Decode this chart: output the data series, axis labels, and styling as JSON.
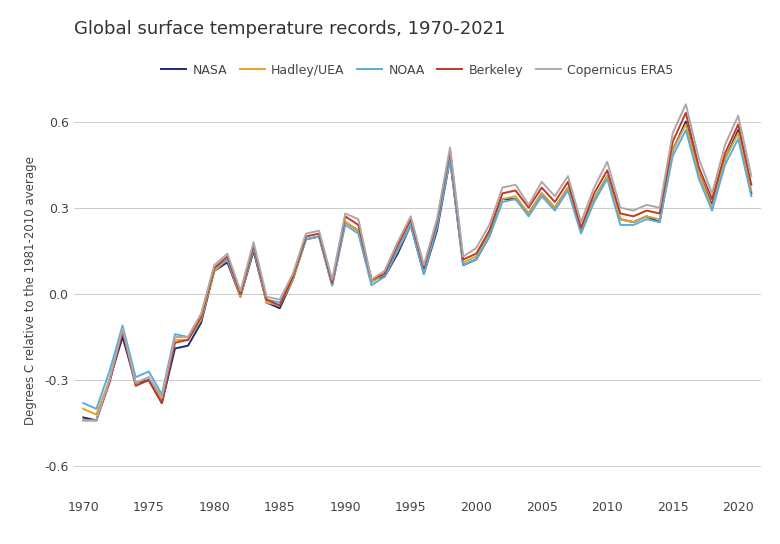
{
  "title": "Global surface temperature records, 1970-2021",
  "ylabel": "Degrees C relative to the 1981-2010 average",
  "years": [
    1970,
    1971,
    1972,
    1973,
    1974,
    1975,
    1976,
    1977,
    1978,
    1979,
    1980,
    1981,
    1982,
    1983,
    1984,
    1985,
    1986,
    1987,
    1988,
    1989,
    1990,
    1991,
    1992,
    1993,
    1994,
    1995,
    1996,
    1997,
    1998,
    1999,
    2000,
    2001,
    2002,
    2003,
    2004,
    2005,
    2006,
    2007,
    2008,
    2009,
    2010,
    2011,
    2012,
    2013,
    2014,
    2015,
    2016,
    2017,
    2018,
    2019,
    2020,
    2021
  ],
  "NASA": [
    -0.43,
    -0.44,
    -0.3,
    -0.15,
    -0.31,
    -0.3,
    -0.38,
    -0.19,
    -0.18,
    -0.1,
    0.08,
    0.11,
    -0.01,
    0.15,
    -0.03,
    -0.05,
    0.05,
    0.19,
    0.2,
    0.03,
    0.25,
    0.22,
    0.05,
    0.06,
    0.14,
    0.24,
    0.07,
    0.22,
    0.47,
    0.1,
    0.12,
    0.2,
    0.33,
    0.33,
    0.28,
    0.35,
    0.3,
    0.37,
    0.22,
    0.33,
    0.41,
    0.26,
    0.25,
    0.27,
    0.25,
    0.5,
    0.6,
    0.42,
    0.31,
    0.47,
    0.57,
    0.35
  ],
  "HadleyUEA": [
    -0.4,
    -0.42,
    -0.3,
    -0.12,
    -0.31,
    -0.29,
    -0.37,
    -0.16,
    -0.16,
    -0.09,
    0.08,
    0.12,
    -0.01,
    0.16,
    -0.03,
    -0.04,
    0.05,
    0.19,
    0.2,
    0.03,
    0.25,
    0.22,
    0.04,
    0.07,
    0.16,
    0.25,
    0.08,
    0.24,
    0.48,
    0.11,
    0.13,
    0.21,
    0.33,
    0.34,
    0.28,
    0.35,
    0.3,
    0.37,
    0.22,
    0.33,
    0.41,
    0.26,
    0.25,
    0.27,
    0.26,
    0.5,
    0.59,
    0.42,
    0.3,
    0.47,
    0.56,
    0.36
  ],
  "NOAA": [
    -0.38,
    -0.4,
    -0.27,
    -0.11,
    -0.29,
    -0.27,
    -0.35,
    -0.14,
    -0.15,
    -0.07,
    0.09,
    0.12,
    0.0,
    0.16,
    -0.02,
    -0.03,
    0.06,
    0.19,
    0.2,
    0.03,
    0.24,
    0.21,
    0.03,
    0.06,
    0.15,
    0.24,
    0.07,
    0.23,
    0.47,
    0.1,
    0.12,
    0.2,
    0.32,
    0.33,
    0.27,
    0.34,
    0.29,
    0.36,
    0.21,
    0.32,
    0.4,
    0.24,
    0.24,
    0.26,
    0.25,
    0.48,
    0.57,
    0.4,
    0.29,
    0.45,
    0.54,
    0.34
  ],
  "Berkeley": [
    -0.44,
    -0.44,
    -0.31,
    -0.13,
    -0.32,
    -0.3,
    -0.38,
    -0.17,
    -0.16,
    -0.08,
    0.09,
    0.13,
    0.0,
    0.17,
    -0.02,
    -0.04,
    0.06,
    0.2,
    0.21,
    0.04,
    0.27,
    0.24,
    0.05,
    0.07,
    0.17,
    0.26,
    0.09,
    0.25,
    0.5,
    0.12,
    0.14,
    0.22,
    0.35,
    0.36,
    0.3,
    0.37,
    0.32,
    0.39,
    0.23,
    0.35,
    0.43,
    0.28,
    0.27,
    0.29,
    0.28,
    0.53,
    0.63,
    0.44,
    0.33,
    0.49,
    0.59,
    0.38
  ],
  "CopernicusERA5": [
    -0.44,
    -0.44,
    -0.3,
    -0.12,
    -0.31,
    -0.29,
    -0.36,
    -0.15,
    -0.15,
    -0.07,
    0.1,
    0.14,
    0.01,
    0.18,
    -0.01,
    -0.02,
    0.07,
    0.21,
    0.22,
    0.05,
    0.28,
    0.26,
    0.05,
    0.08,
    0.18,
    0.27,
    0.1,
    0.26,
    0.51,
    0.13,
    0.16,
    0.24,
    0.37,
    0.38,
    0.31,
    0.39,
    0.34,
    0.41,
    0.25,
    0.37,
    0.46,
    0.3,
    0.29,
    0.31,
    0.3,
    0.56,
    0.66,
    0.47,
    0.35,
    0.52,
    0.62,
    0.41
  ],
  "colors": {
    "NASA": "#1b2a7b",
    "HadleyUEA": "#e8a020",
    "NOAA": "#5aacdc",
    "Berkeley": "#c0392b",
    "CopernicusERA5": "#aaaaaa"
  },
  "legend_labels": [
    "NASA",
    "Hadley/UEA",
    "NOAA",
    "Berkeley",
    "Copernicus ERA5"
  ],
  "ylim": [
    -0.7,
    0.72
  ],
  "yticks": [
    -0.6,
    -0.3,
    0.0,
    0.3,
    0.6
  ],
  "xticks": [
    1970,
    1975,
    1980,
    1985,
    1990,
    1995,
    2000,
    2005,
    2010,
    2015,
    2020
  ],
  "background_color": "#ffffff",
  "grid_color": "#cccccc",
  "title_fontsize": 13,
  "label_fontsize": 8.5,
  "tick_fontsize": 9,
  "legend_fontsize": 9,
  "linewidth": 1.4
}
